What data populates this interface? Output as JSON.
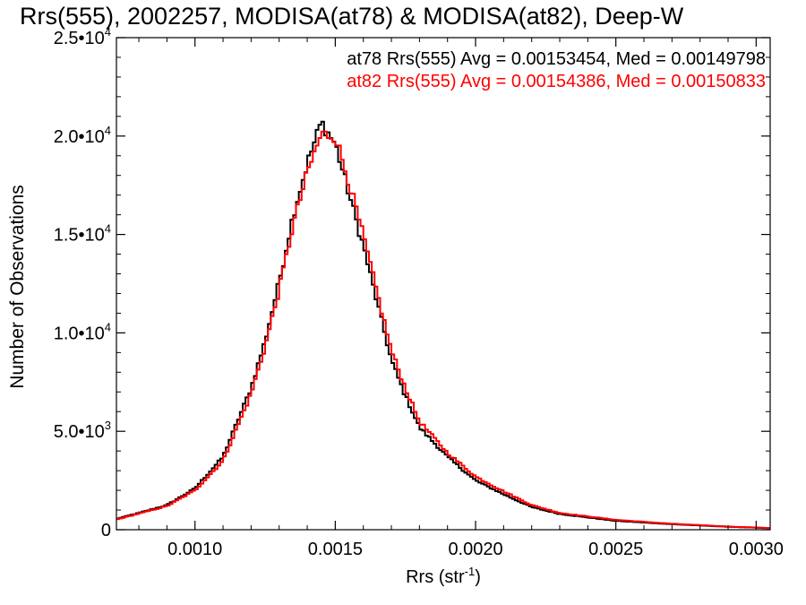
{
  "chart_data": {
    "type": "line",
    "title": "Rrs(555), 2002257, MODISA(at78) & MODISA(at82), Deep-W",
    "xlabel": {
      "base": "Rrs (str",
      "sup": "-1",
      "end": ")"
    },
    "ylabel": "Number of Observations",
    "xlim": [
      0.00072,
      0.00305
    ],
    "ylim": [
      0,
      25000
    ],
    "x_ticks": [
      {
        "value": 0.001,
        "label": "0.0010"
      },
      {
        "value": 0.0015,
        "label": "0.0015"
      },
      {
        "value": 0.002,
        "label": "0.0020"
      },
      {
        "value": 0.0025,
        "label": "0.0025"
      },
      {
        "value": 0.003,
        "label": "0.0030"
      }
    ],
    "y_ticks": [
      {
        "value": 0,
        "mant": "0",
        "exp": ""
      },
      {
        "value": 5000,
        "mant": "5.0•10",
        "exp": "3"
      },
      {
        "value": 10000,
        "mant": "1.0•10",
        "exp": "4"
      },
      {
        "value": 15000,
        "mant": "1.5•10",
        "exp": "4"
      },
      {
        "value": 20000,
        "mant": "2.0•10",
        "exp": "4"
      },
      {
        "value": 25000,
        "mant": "2.5•10",
        "exp": "4"
      }
    ],
    "annotations": [
      {
        "text": "at78 Rrs(555) Avg = 0.00153454, Med = 0.00149798",
        "color": "#000000"
      },
      {
        "text": "at82 Rrs(555) Avg = 0.00154386, Med = 0.00150833",
        "color": "#ff0000"
      }
    ],
    "bin_width": 1e-05,
    "grid": false,
    "series": [
      {
        "name": "at78",
        "color": "#000000",
        "points": [
          [
            0.00072,
            550
          ],
          [
            0.0008,
            850
          ],
          [
            0.0009,
            1250
          ],
          [
            0.001,
            2100
          ],
          [
            0.0011,
            3700
          ],
          [
            0.0012,
            7200
          ],
          [
            0.00125,
            9600
          ],
          [
            0.0013,
            12600
          ],
          [
            0.00135,
            16000
          ],
          [
            0.0014,
            18600
          ],
          [
            0.00145,
            20700
          ],
          [
            0.0015,
            19600
          ],
          [
            0.00155,
            17000
          ],
          [
            0.0016,
            14400
          ],
          [
            0.00165,
            11500
          ],
          [
            0.0017,
            8600
          ],
          [
            0.00175,
            6800
          ],
          [
            0.0018,
            5200
          ],
          [
            0.0019,
            3700
          ],
          [
            0.002,
            2500
          ],
          [
            0.0021,
            1800
          ],
          [
            0.0022,
            1150
          ],
          [
            0.0023,
            800
          ],
          [
            0.0025,
            450
          ],
          [
            0.0027,
            280
          ],
          [
            0.0029,
            150
          ],
          [
            0.00305,
            80
          ]
        ]
      },
      {
        "name": "at82",
        "color": "#ff0000",
        "points": [
          [
            0.00072,
            520
          ],
          [
            0.0008,
            820
          ],
          [
            0.0009,
            1200
          ],
          [
            0.001,
            2000
          ],
          [
            0.0011,
            3500
          ],
          [
            0.0012,
            6900
          ],
          [
            0.00125,
            9300
          ],
          [
            0.0013,
            12200
          ],
          [
            0.00135,
            15500
          ],
          [
            0.0014,
            18100
          ],
          [
            0.00145,
            20100
          ],
          [
            0.0015,
            20000
          ],
          [
            0.00155,
            17600
          ],
          [
            0.0016,
            14900
          ],
          [
            0.00165,
            12000
          ],
          [
            0.0017,
            9100
          ],
          [
            0.00175,
            7200
          ],
          [
            0.0018,
            5500
          ],
          [
            0.0019,
            3900
          ],
          [
            0.002,
            2700
          ],
          [
            0.0021,
            1950
          ],
          [
            0.0022,
            1250
          ],
          [
            0.0023,
            850
          ],
          [
            0.0025,
            500
          ],
          [
            0.0027,
            300
          ],
          [
            0.0029,
            160
          ],
          [
            0.00305,
            85
          ]
        ]
      }
    ]
  }
}
